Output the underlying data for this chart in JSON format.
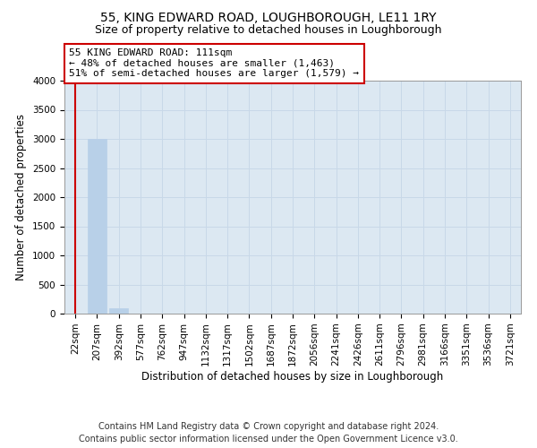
{
  "title": "55, KING EDWARD ROAD, LOUGHBOROUGH, LE11 1RY",
  "subtitle": "Size of property relative to detached houses in Loughborough",
  "xlabel": "Distribution of detached houses by size in Loughborough",
  "ylabel": "Number of detached properties",
  "footer_line1": "Contains HM Land Registry data © Crown copyright and database right 2024.",
  "footer_line2": "Contains public sector information licensed under the Open Government Licence v3.0.",
  "bar_labels": [
    "22sqm",
    "207sqm",
    "392sqm",
    "577sqm",
    "762sqm",
    "947sqm",
    "1132sqm",
    "1317sqm",
    "1502sqm",
    "1687sqm",
    "1872sqm",
    "2056sqm",
    "2241sqm",
    "2426sqm",
    "2611sqm",
    "2796sqm",
    "2981sqm",
    "3166sqm",
    "3351sqm",
    "3536sqm",
    "3721sqm"
  ],
  "bar_values": [
    0,
    3000,
    100,
    0,
    0,
    0,
    0,
    0,
    0,
    0,
    0,
    0,
    0,
    0,
    0,
    0,
    0,
    0,
    0,
    0,
    0
  ],
  "bar_color": "#b8d0e8",
  "bar_edge_color": "#b8d0e8",
  "ylim": [
    0,
    4000
  ],
  "yticks": [
    0,
    500,
    1000,
    1500,
    2000,
    2500,
    3000,
    3500,
    4000
  ],
  "grid_color": "#c8d8e8",
  "background_color": "#dce8f2",
  "fig_background": "#ffffff",
  "annotation_text_line1": "55 KING EDWARD ROAD: 111sqm",
  "annotation_text_line2": "← 48% of detached houses are smaller (1,463)",
  "annotation_text_line3": "51% of semi-detached houses are larger (1,579) →",
  "annotation_box_color": "#ffffff",
  "annotation_border_color": "#cc0000",
  "vline_color": "#cc0000",
  "title_fontsize": 10,
  "subtitle_fontsize": 9,
  "xlabel_fontsize": 8.5,
  "ylabel_fontsize": 8.5,
  "tick_fontsize": 7.5,
  "footer_fontsize": 7,
  "ann_fontsize": 8
}
